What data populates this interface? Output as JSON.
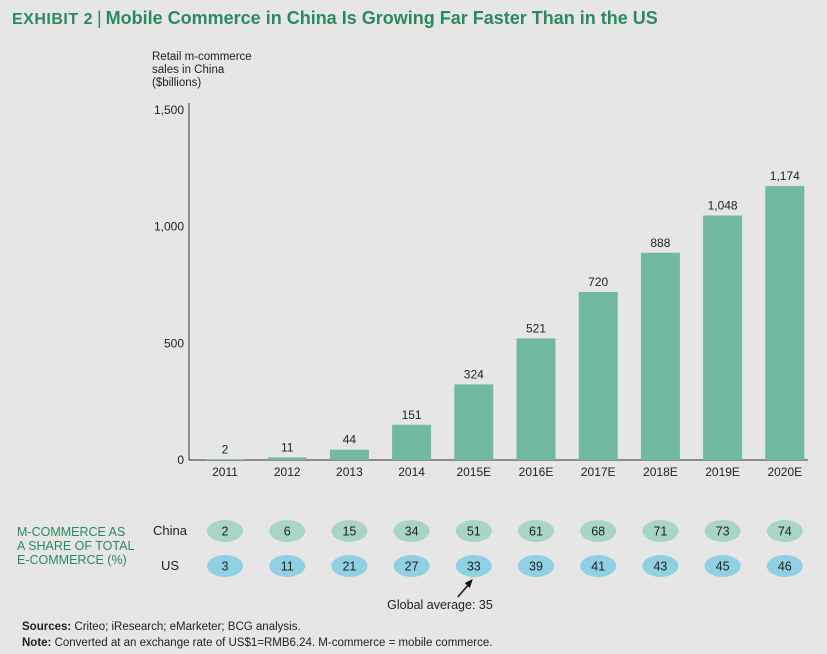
{
  "title": {
    "exhibit": "EXHIBIT 2",
    "text": "Mobile Commerce in China Is Growing Far Faster Than in the US"
  },
  "colors": {
    "bar": "#72b9a1",
    "china_ellipse": "#a8d5c4",
    "us_ellipse": "#8fd0e3",
    "title": "#2a8a5f"
  },
  "chart_data": {
    "type": "bar",
    "ylabel": "Retail m-commerce\nsales in China\n($billions)",
    "categories": [
      "2011",
      "2012",
      "2013",
      "2014",
      "2015E",
      "2016E",
      "2017E",
      "2018E",
      "2019E",
      "2020E"
    ],
    "values": [
      2,
      11,
      44,
      151,
      324,
      521,
      720,
      888,
      1048,
      1174
    ],
    "value_labels": [
      "2",
      "11",
      "44",
      "151",
      "324",
      "521",
      "720",
      "888",
      "1,048",
      "1,174"
    ],
    "ylim": [
      0,
      1500
    ],
    "yticks": [
      {
        "value": 0,
        "label": "0"
      },
      {
        "value": 500,
        "label": "500"
      },
      {
        "value": 1000,
        "label": "1,000"
      },
      {
        "value": 1500,
        "label": "1,500"
      }
    ],
    "grid": false
  },
  "share_table": {
    "label": "M-COMMERCE AS\nA SHARE OF TOTAL\nE-COMMERCE (%)",
    "rows": [
      {
        "name": "China",
        "values": [
          "2",
          "6",
          "15",
          "34",
          "51",
          "61",
          "68",
          "71",
          "73",
          "74"
        ]
      },
      {
        "name": "US",
        "values": [
          "3",
          "11",
          "21",
          "27",
          "33",
          "39",
          "41",
          "43",
          "45",
          "46"
        ]
      }
    ],
    "annotation": "Global average: 35"
  },
  "sources": {
    "sources_label": "Sources:",
    "sources_text": " Criteo; iResearch; eMarketer; BCG analysis.",
    "note_label": "Note:",
    "note_text": " Converted at an exchange rate of US$1=RMB6.24. M-commerce = mobile commerce."
  }
}
